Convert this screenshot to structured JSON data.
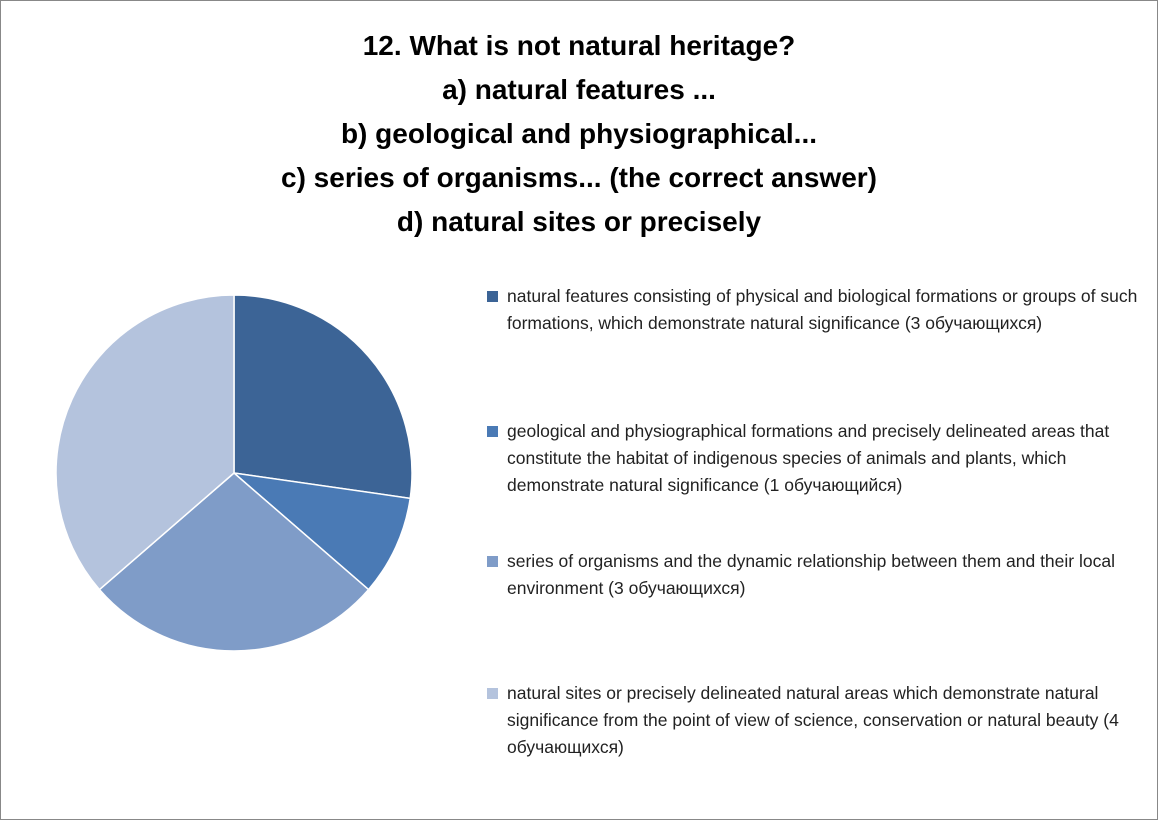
{
  "chart_data": {
    "type": "pie",
    "title": [
      "12. What is not natural heritage?",
      "a) natural features ...",
      "b) geological and physiographical...",
      "c) series of organisms... (the correct answer)",
      "d) natural sites or precisely"
    ],
    "categories": [
      "natural features consisting of physical and biological formations or groups of such formations, which demonstrate natural significance (3 обучающихся)",
      "geological and physiographical formations and precisely delineated areas that constitute the habitat of indigenous species of animals and plants, which demonstrate natural significance (1 обучающийся)",
      "series of organisms and the dynamic relationship between them and their local environment (3 обучающихся)",
      "natural sites or precisely delineated natural areas which demonstrate natural significance from the point of view of science, conservation or natural beauty (4 обучающихся)"
    ],
    "values": [
      3,
      1,
      3,
      4
    ],
    "colors": [
      "#3c6496",
      "#4a7ab5",
      "#7f9cc8",
      "#b4c3dd"
    ],
    "legend": "right"
  }
}
